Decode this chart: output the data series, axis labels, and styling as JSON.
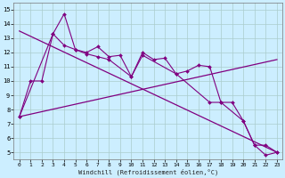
{
  "xlabel": "Windchill (Refroidissement éolien,°C)",
  "bg_color": "#cceeff",
  "grid_color": "#aacccc",
  "line_color": "#800080",
  "xlim": [
    -0.5,
    23.5
  ],
  "ylim": [
    4.5,
    15.5
  ],
  "xticks": [
    0,
    1,
    2,
    3,
    4,
    5,
    6,
    7,
    8,
    9,
    10,
    11,
    12,
    13,
    14,
    15,
    16,
    17,
    18,
    19,
    20,
    21,
    22,
    23
  ],
  "yticks": [
    5,
    6,
    7,
    8,
    9,
    10,
    11,
    12,
    13,
    14,
    15
  ],
  "line1_x": [
    0,
    1,
    2,
    3,
    4,
    5,
    6,
    7,
    8,
    9,
    10,
    11,
    12,
    13,
    14,
    15,
    16,
    17,
    18,
    19,
    20,
    21,
    22,
    23
  ],
  "line1_y": [
    7.5,
    10.0,
    10.0,
    13.3,
    14.7,
    12.2,
    12.0,
    12.4,
    11.7,
    11.8,
    10.3,
    12.0,
    11.5,
    11.6,
    10.5,
    10.7,
    11.1,
    11.0,
    8.5,
    8.5,
    7.2,
    5.5,
    4.8,
    5.0
  ],
  "line2_x": [
    0,
    3,
    4,
    5,
    6,
    7,
    8,
    10,
    11,
    14,
    17,
    18,
    20,
    21,
    22,
    23
  ],
  "line2_y": [
    7.5,
    13.3,
    12.5,
    12.2,
    11.9,
    11.7,
    11.5,
    10.3,
    11.8,
    10.5,
    8.5,
    8.5,
    7.2,
    5.5,
    5.5,
    5.0
  ],
  "line3_x": [
    0,
    23
  ],
  "line3_y": [
    13.5,
    5.0
  ],
  "line4_x": [
    0,
    23
  ],
  "line4_y": [
    7.5,
    11.5
  ]
}
